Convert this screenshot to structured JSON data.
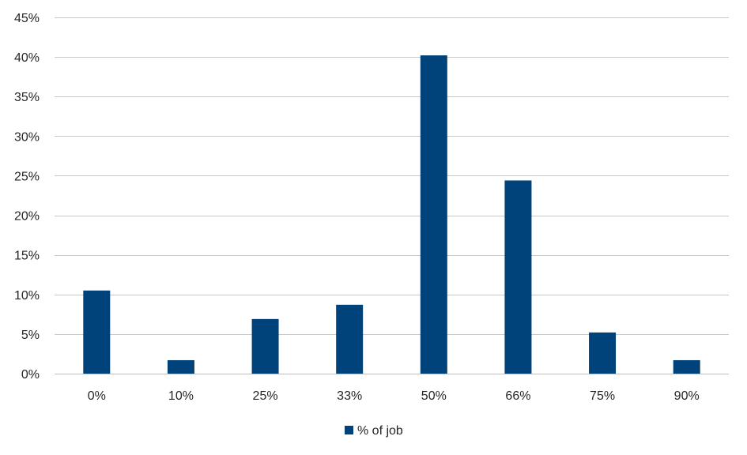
{
  "chart_data": {
    "type": "bar",
    "categories": [
      "0%",
      "10%",
      "25%",
      "33%",
      "50%",
      "66%",
      "75%",
      "90%"
    ],
    "series": [
      {
        "name": "% of job",
        "values": [
          10.5,
          1.7,
          6.9,
          8.7,
          40.2,
          24.4,
          5.2,
          1.7
        ],
        "color": "#00427a"
      }
    ],
    "ylim": [
      0,
      45
    ],
    "yticks": [
      0,
      5,
      10,
      15,
      20,
      25,
      30,
      35,
      40,
      45
    ],
    "ytick_labels": [
      "0%",
      "5%",
      "10%",
      "15%",
      "20%",
      "25%",
      "30%",
      "35%",
      "40%",
      "45%"
    ],
    "title": "",
    "xlabel": "",
    "ylabel": "",
    "grid": true,
    "legend": "bottom-center"
  }
}
